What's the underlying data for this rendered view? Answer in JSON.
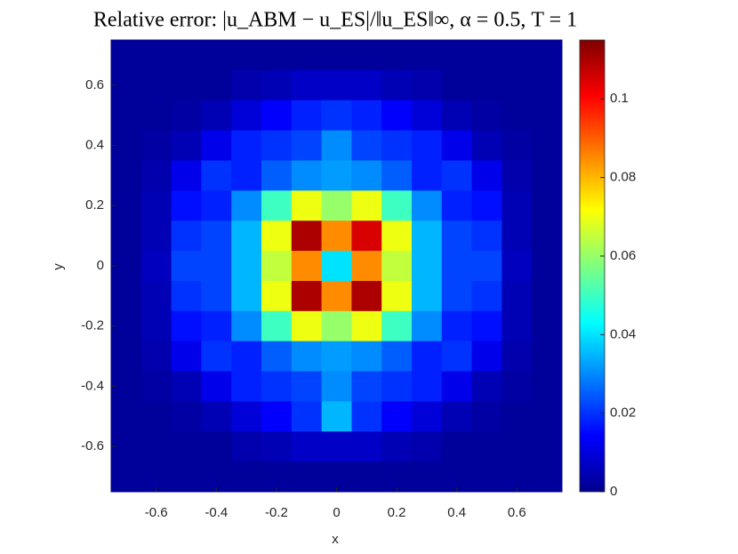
{
  "chart_data": {
    "type": "heatmap",
    "title": "Relative error: |u_ABM − u_ES|/‖u_ES‖∞, α = 0.5, T = 1",
    "x_label": "x",
    "y_label": "y",
    "xlim": [
      -0.75,
      0.75
    ],
    "ylim": [
      -0.75,
      0.75
    ],
    "xticks": [
      -0.6,
      -0.4,
      -0.2,
      0,
      0.2,
      0.4,
      0.6
    ],
    "yticks": [
      -0.6,
      -0.4,
      -0.2,
      0,
      0.2,
      0.4,
      0.6
    ],
    "colormap": "jet",
    "clim": [
      0,
      0.115
    ],
    "cticks": [
      0,
      0.02,
      0.04,
      0.06,
      0.08,
      0.1
    ],
    "x": [
      -0.7,
      -0.6,
      -0.5,
      -0.4,
      -0.3,
      -0.2,
      -0.1,
      0,
      0.1,
      0.2,
      0.3,
      0.4,
      0.5,
      0.6,
      0.7
    ],
    "y": [
      0.7,
      0.6,
      0.5,
      0.4,
      0.3,
      0.2,
      0.1,
      0,
      -0.1,
      -0.2,
      -0.3,
      -0.4,
      -0.5,
      -0.6,
      -0.7
    ],
    "z": [
      [
        0.003,
        0.003,
        0.003,
        0.003,
        0.003,
        0.003,
        0.003,
        0.003,
        0.003,
        0.003,
        0.003,
        0.003,
        0.003,
        0.003,
        0.003
      ],
      [
        0.003,
        0.003,
        0.003,
        0.003,
        0.005,
        0.006,
        0.008,
        0.008,
        0.008,
        0.006,
        0.005,
        0.003,
        0.003,
        0.003,
        0.003
      ],
      [
        0.003,
        0.003,
        0.004,
        0.006,
        0.01,
        0.014,
        0.018,
        0.02,
        0.018,
        0.014,
        0.01,
        0.006,
        0.004,
        0.003,
        0.003
      ],
      [
        0.003,
        0.004,
        0.006,
        0.012,
        0.018,
        0.02,
        0.022,
        0.03,
        0.022,
        0.02,
        0.018,
        0.012,
        0.006,
        0.004,
        0.003
      ],
      [
        0.003,
        0.005,
        0.012,
        0.02,
        0.018,
        0.025,
        0.03,
        0.032,
        0.03,
        0.025,
        0.018,
        0.02,
        0.012,
        0.005,
        0.003
      ],
      [
        0.003,
        0.006,
        0.016,
        0.018,
        0.03,
        0.05,
        0.07,
        0.06,
        0.07,
        0.05,
        0.03,
        0.018,
        0.016,
        0.006,
        0.003
      ],
      [
        0.003,
        0.006,
        0.02,
        0.022,
        0.035,
        0.07,
        0.11,
        0.085,
        0.105,
        0.07,
        0.035,
        0.022,
        0.02,
        0.006,
        0.003
      ],
      [
        0.003,
        0.007,
        0.022,
        0.022,
        0.035,
        0.065,
        0.085,
        0.04,
        0.085,
        0.065,
        0.035,
        0.022,
        0.022,
        0.007,
        0.003
      ],
      [
        0.003,
        0.006,
        0.02,
        0.022,
        0.035,
        0.07,
        0.11,
        0.085,
        0.11,
        0.07,
        0.035,
        0.022,
        0.02,
        0.006,
        0.003
      ],
      [
        0.003,
        0.006,
        0.016,
        0.018,
        0.03,
        0.05,
        0.07,
        0.06,
        0.07,
        0.05,
        0.03,
        0.018,
        0.016,
        0.006,
        0.003
      ],
      [
        0.003,
        0.005,
        0.012,
        0.02,
        0.018,
        0.025,
        0.03,
        0.032,
        0.03,
        0.025,
        0.018,
        0.02,
        0.012,
        0.005,
        0.003
      ],
      [
        0.003,
        0.004,
        0.006,
        0.012,
        0.018,
        0.02,
        0.022,
        0.03,
        0.022,
        0.02,
        0.018,
        0.012,
        0.006,
        0.004,
        0.003
      ],
      [
        0.003,
        0.003,
        0.004,
        0.006,
        0.01,
        0.014,
        0.02,
        0.035,
        0.02,
        0.014,
        0.01,
        0.006,
        0.004,
        0.003,
        0.003
      ],
      [
        0.003,
        0.003,
        0.003,
        0.003,
        0.005,
        0.006,
        0.008,
        0.008,
        0.008,
        0.006,
        0.005,
        0.003,
        0.003,
        0.003,
        0.003
      ],
      [
        0.003,
        0.003,
        0.003,
        0.003,
        0.003,
        0.003,
        0.003,
        0.003,
        0.003,
        0.003,
        0.003,
        0.003,
        0.003,
        0.003,
        0.003
      ]
    ]
  }
}
